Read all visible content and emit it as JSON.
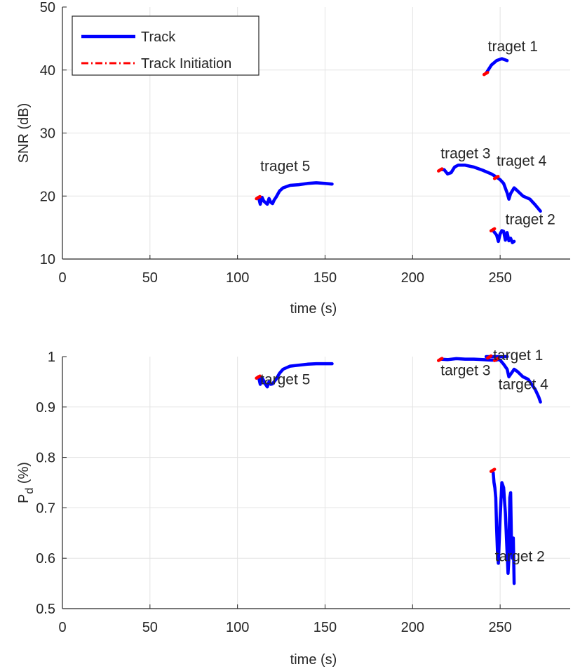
{
  "chart_data": [
    {
      "type": "line",
      "xlabel": "time (s)",
      "ylabel": "SNR (dB)",
      "xlim": [
        0,
        290
      ],
      "ylim": [
        10,
        50
      ],
      "xticks": [
        "0",
        "50",
        "100",
        "150",
        "200",
        "250"
      ],
      "yticks": [
        "10",
        "20",
        "30",
        "40",
        "50"
      ],
      "grid": true,
      "legend": {
        "position": "top-left",
        "entries": [
          {
            "label": "Track",
            "color": "#0000ff",
            "style": "solid"
          },
          {
            "label": "Track Initiation",
            "color": "#ff0000",
            "style": "dashdot"
          }
        ]
      },
      "series": [
        {
          "x": [
            242,
            245,
            248,
            251,
            254
          ],
          "y": [
            39.5,
            40.8,
            41.5,
            41.8,
            41.5
          ]
        },
        {
          "x": [
            246,
            248,
            249,
            250,
            251,
            252,
            253,
            254,
            255,
            256,
            257,
            258
          ],
          "y": [
            14.5,
            13.8,
            12.8,
            14.0,
            14.5,
            14.4,
            13.0,
            14.2,
            12.9,
            13.3,
            12.6,
            12.8
          ]
        },
        {
          "x": [
            216,
            218,
            220,
            222,
            224,
            226,
            230,
            235,
            240,
            245,
            248
          ],
          "y": [
            24.2,
            24.2,
            23.5,
            23.7,
            24.6,
            24.9,
            24.9,
            24.6,
            24.1,
            23.5,
            23.0
          ]
        },
        {
          "x": [
            248,
            250,
            252,
            254,
            255,
            256,
            258,
            260,
            263,
            267,
            270,
            273
          ],
          "y": [
            23.0,
            22.6,
            22.0,
            20.5,
            19.5,
            20.4,
            21.3,
            20.8,
            20.0,
            19.5,
            18.6,
            17.6
          ]
        },
        {
          "x": [
            112,
            113,
            114,
            115,
            117,
            118,
            119,
            120,
            121,
            122,
            124,
            126,
            130,
            135,
            140,
            145,
            150,
            154
          ],
          "y": [
            19.8,
            18.7,
            19.8,
            19.2,
            18.7,
            19.6,
            19.0,
            18.8,
            19.4,
            19.8,
            20.8,
            21.3,
            21.7,
            21.8,
            22.0,
            22.1,
            22.0,
            21.9
          ]
        }
      ],
      "init_points": [
        {
          "x": 242,
          "y": 39.5
        },
        {
          "x": 246,
          "y": 14.7
        },
        {
          "x": 216,
          "y": 24.2
        },
        {
          "x": 248,
          "y": 23.0
        },
        {
          "x": 112,
          "y": 19.8
        }
      ],
      "annotations": [
        {
          "text": "traget 1",
          "x": 243,
          "y": 43.0
        },
        {
          "text": "traget 2",
          "x": 253,
          "y": 15.5
        },
        {
          "text": "traget 3",
          "x": 216,
          "y": 26.0
        },
        {
          "text": "traget 4",
          "x": 248,
          "y": 24.8
        },
        {
          "text": "traget 5",
          "x": 113,
          "y": 24.0
        }
      ]
    },
    {
      "type": "line",
      "xlabel": "time (s)",
      "ylabel": "P",
      "ylabel_sub": "d",
      "ylabel_unit": "(%)",
      "xlim": [
        0,
        290
      ],
      "ylim": [
        0.5,
        1.0
      ],
      "xticks": [
        "0",
        "50",
        "100",
        "150",
        "200",
        "250"
      ],
      "yticks": [
        "0.5",
        "0.6",
        "0.7",
        "0.8",
        "0.9",
        "1"
      ],
      "grid": true,
      "series": [
        {
          "x": [
            242,
            245,
            248,
            251,
            254
          ],
          "y": [
            1.0,
            1.0,
            1.0,
            1.0,
            1.0
          ]
        },
        {
          "x": [
            246,
            246.5,
            247,
            247.5,
            248,
            248.5,
            249,
            250,
            251,
            252,
            253,
            254,
            254.5,
            255,
            255.5,
            256,
            256.5,
            257,
            257.5,
            258
          ],
          "y": [
            0.77,
            0.75,
            0.74,
            0.72,
            0.66,
            0.61,
            0.59,
            0.68,
            0.75,
            0.74,
            0.69,
            0.61,
            0.57,
            0.6,
            0.72,
            0.73,
            0.62,
            0.6,
            0.64,
            0.55
          ]
        },
        {
          "x": [
            216,
            220,
            225,
            230,
            235,
            240,
            245,
            248
          ],
          "y": [
            0.995,
            0.994,
            0.996,
            0.995,
            0.995,
            0.994,
            0.993,
            0.993
          ]
        },
        {
          "x": [
            248,
            250,
            252,
            254,
            255,
            256,
            258,
            260,
            263,
            266,
            268,
            270,
            272,
            273
          ],
          "y": [
            0.995,
            0.993,
            0.985,
            0.975,
            0.96,
            0.965,
            0.975,
            0.97,
            0.96,
            0.955,
            0.945,
            0.935,
            0.92,
            0.91
          ]
        },
        {
          "x": [
            112,
            113,
            114,
            115,
            116,
            117,
            118,
            119,
            120,
            122,
            124,
            126,
            130,
            135,
            140,
            145,
            150,
            154
          ],
          "y": [
            0.96,
            0.945,
            0.958,
            0.952,
            0.945,
            0.94,
            0.95,
            0.945,
            0.946,
            0.955,
            0.967,
            0.975,
            0.981,
            0.983,
            0.985,
            0.986,
            0.986,
            0.986
          ]
        }
      ],
      "init_points": [
        {
          "x": 244,
          "y": 1.0
        },
        {
          "x": 246,
          "y": 0.775
        },
        {
          "x": 216,
          "y": 0.995
        },
        {
          "x": 248,
          "y": 0.995
        },
        {
          "x": 112,
          "y": 0.96
        }
      ],
      "annotations": [
        {
          "text": "target 1",
          "x": 246,
          "y": 0.993
        },
        {
          "text": "target 2",
          "x": 247,
          "y": 0.594
        },
        {
          "text": "target 3",
          "x": 216,
          "y": 0.963
        },
        {
          "text": "target 4",
          "x": 249,
          "y": 0.935
        },
        {
          "text": "target 5",
          "x": 113,
          "y": 0.945
        }
      ]
    }
  ]
}
